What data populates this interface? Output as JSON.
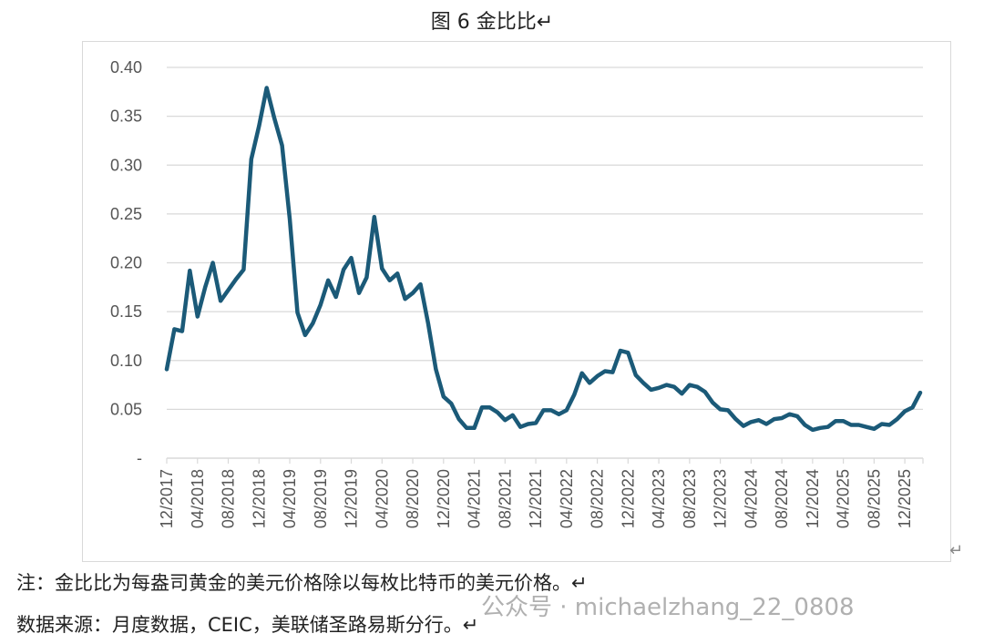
{
  "title": "图 6  金比比↵",
  "notes": {
    "note1": "注：金比比为每盎司黄金的美元价格除以每枚比特币的美元价格。↵",
    "note2": "数据来源：月度数据，CEIC，美联储圣路易斯分行。↵"
  },
  "watermark": "公众号 · michaelzhang_22_0808",
  "return_mark": "↵",
  "chart_data": {
    "type": "line",
    "title": "",
    "xlabel": "",
    "ylabel": "",
    "ylim": [
      0,
      0.4
    ],
    "grid": true,
    "line_color": "#1b5a78",
    "y_ticks": [
      "-",
      "0.05",
      "0.10",
      "0.15",
      "0.20",
      "0.25",
      "0.30",
      "0.35",
      "0.40"
    ],
    "x_ticks": [
      "12/2017",
      "04/2018",
      "08/2018",
      "12/2018",
      "04/2019",
      "08/2019",
      "12/2019",
      "04/2020",
      "08/2020",
      "12/2020",
      "04/2021",
      "08/2021",
      "12/2021",
      "04/2022",
      "08/2022",
      "12/2022",
      "04/2023",
      "08/2023",
      "12/2023",
      "04/2024",
      "08/2024",
      "12/2024",
      "04/2025",
      "08/2025",
      "12/2025"
    ],
    "x": [
      "12/2017",
      "01/2018",
      "02/2018",
      "03/2018",
      "04/2018",
      "05/2018",
      "06/2018",
      "07/2018",
      "08/2018",
      "09/2018",
      "10/2018",
      "11/2018",
      "12/2018",
      "01/2019",
      "02/2019",
      "03/2019",
      "04/2019",
      "05/2019",
      "06/2019",
      "07/2019",
      "08/2019",
      "09/2019",
      "10/2019",
      "11/2019",
      "12/2019",
      "01/2020",
      "02/2020",
      "03/2020",
      "04/2020",
      "05/2020",
      "06/2020",
      "07/2020",
      "08/2020",
      "09/2020",
      "10/2020",
      "11/2020",
      "12/2020",
      "01/2021",
      "02/2021",
      "03/2021",
      "04/2021",
      "05/2021",
      "06/2021",
      "07/2021",
      "08/2021",
      "09/2021",
      "10/2021",
      "11/2021",
      "12/2021",
      "01/2022",
      "02/2022",
      "03/2022",
      "04/2022",
      "05/2022",
      "06/2022",
      "07/2022",
      "08/2022",
      "09/2022",
      "10/2022",
      "11/2022",
      "12/2022",
      "01/2023",
      "02/2023",
      "03/2023",
      "04/2023",
      "05/2023",
      "06/2023",
      "07/2023",
      "08/2023",
      "09/2023",
      "10/2023",
      "11/2023",
      "12/2023",
      "01/2024",
      "02/2024",
      "03/2024",
      "04/2024",
      "05/2024",
      "06/2024",
      "07/2024",
      "08/2024",
      "09/2024",
      "10/2024",
      "11/2024",
      "12/2024",
      "01/2025",
      "02/2025",
      "03/2025",
      "04/2025",
      "05/2025",
      "06/2025",
      "07/2025",
      "08/2025",
      "09/2025",
      "10/2025",
      "11/2025",
      "12/2025",
      "01/2026",
      "02/2026"
    ],
    "series": [
      {
        "values": [
          0.091,
          0.132,
          0.13,
          0.192,
          0.145,
          0.175,
          0.2,
          0.161,
          0.172,
          0.183,
          0.193,
          0.306,
          0.34,
          0.379,
          0.348,
          0.32,
          0.245,
          0.149,
          0.126,
          0.138,
          0.157,
          0.182,
          0.165,
          0.193,
          0.205,
          0.169,
          0.185,
          0.247,
          0.194,
          0.182,
          0.189,
          0.163,
          0.169,
          0.178,
          0.138,
          0.091,
          0.063,
          0.056,
          0.04,
          0.031,
          0.031,
          0.052,
          0.052,
          0.047,
          0.039,
          0.044,
          0.032,
          0.035,
          0.036,
          0.049,
          0.049,
          0.045,
          0.049,
          0.065,
          0.087,
          0.077,
          0.084,
          0.089,
          0.088,
          0.11,
          0.108,
          0.085,
          0.077,
          0.07,
          0.072,
          0.075,
          0.073,
          0.066,
          0.075,
          0.073,
          0.068,
          0.057,
          0.05,
          0.049,
          0.04,
          0.033,
          0.037,
          0.039,
          0.035,
          0.04,
          0.041,
          0.045,
          0.043,
          0.034,
          0.029,
          0.031,
          0.032,
          0.038,
          0.038,
          0.034,
          0.034,
          0.032,
          0.03,
          0.035,
          0.034,
          0.04,
          0.048,
          0.052,
          0.067
        ]
      }
    ]
  }
}
